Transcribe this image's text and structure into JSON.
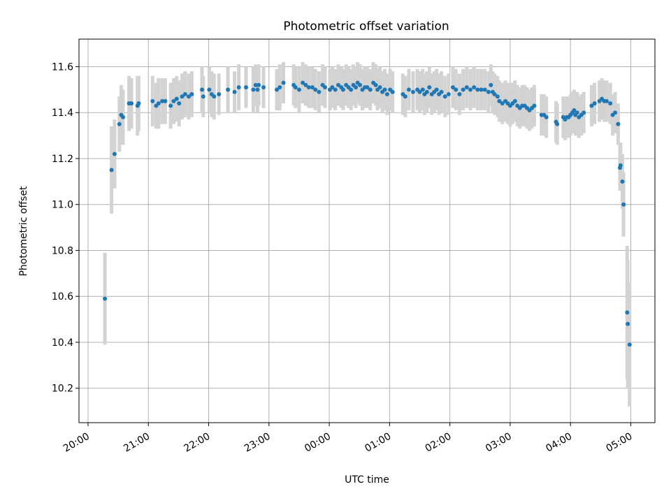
{
  "chart_data": {
    "type": "scatter",
    "title": "Photometric offset variation",
    "xlabel": "UTC time",
    "ylabel": "Photometric offset",
    "xlim_hours": [
      -4.15,
      5.4
    ],
    "ylim": [
      10.05,
      11.72
    ],
    "grid": true,
    "colors": {
      "point": "#1f77b4",
      "errorbar": "#d3d3d3",
      "grid": "#b0b0b0"
    },
    "x_ticks": [
      {
        "h": -4,
        "label": "20:00"
      },
      {
        "h": -3,
        "label": "21:00"
      },
      {
        "h": -2,
        "label": "22:00"
      },
      {
        "h": -1,
        "label": "23:00"
      },
      {
        "h": 0,
        "label": "00:00"
      },
      {
        "h": 1,
        "label": "01:00"
      },
      {
        "h": 2,
        "label": "02:00"
      },
      {
        "h": 3,
        "label": "03:00"
      },
      {
        "h": 4,
        "label": "04:00"
      },
      {
        "h": 5,
        "label": "05:00"
      }
    ],
    "y_ticks": [
      {
        "v": 10.2,
        "label": "10.2"
      },
      {
        "v": 10.4,
        "label": "10.4"
      },
      {
        "v": 10.6,
        "label": "10.6"
      },
      {
        "v": 10.8,
        "label": "10.8"
      },
      {
        "v": 11.0,
        "label": "11.0"
      },
      {
        "v": 11.2,
        "label": "11.2"
      },
      {
        "v": 11.4,
        "label": "11.4"
      },
      {
        "v": 11.6,
        "label": "11.6"
      }
    ],
    "points": [
      [
        -3.72,
        10.59,
        0.2
      ],
      [
        -3.61,
        11.15,
        0.19
      ],
      [
        -3.56,
        11.22,
        0.15
      ],
      [
        -3.48,
        11.35,
        0.12
      ],
      [
        -3.45,
        11.39,
        0.13
      ],
      [
        -3.42,
        11.38,
        0.12
      ],
      [
        -3.32,
        11.44,
        0.12
      ],
      [
        -3.28,
        11.44,
        0.11
      ],
      [
        -3.18,
        11.43,
        0.13
      ],
      [
        -3.16,
        11.44,
        0.12
      ],
      [
        -2.93,
        11.45,
        0.11
      ],
      [
        -2.87,
        11.43,
        0.1
      ],
      [
        -2.83,
        11.44,
        0.11
      ],
      [
        -2.77,
        11.45,
        0.1
      ],
      [
        -2.72,
        11.45,
        0.1
      ],
      [
        -2.63,
        11.43,
        0.1
      ],
      [
        -2.58,
        11.45,
        0.1
      ],
      [
        -2.53,
        11.46,
        0.1
      ],
      [
        -2.49,
        11.44,
        0.1
      ],
      [
        -2.44,
        11.47,
        0.1
      ],
      [
        -2.39,
        11.48,
        0.1
      ],
      [
        -2.33,
        11.47,
        0.1
      ],
      [
        -2.28,
        11.48,
        0.1
      ],
      [
        -2.11,
        11.5,
        0.1
      ],
      [
        -2.09,
        11.47,
        0.09
      ],
      [
        -1.99,
        11.5,
        0.1
      ],
      [
        -1.95,
        11.48,
        0.1
      ],
      [
        -1.91,
        11.47,
        0.1
      ],
      [
        -1.83,
        11.48,
        0.09
      ],
      [
        -1.68,
        11.5,
        0.1
      ],
      [
        -1.57,
        11.49,
        0.09
      ],
      [
        -1.5,
        11.51,
        0.1
      ],
      [
        -1.38,
        11.51,
        0.09
      ],
      [
        -1.26,
        11.5,
        0.1
      ],
      [
        -1.22,
        11.52,
        0.09
      ],
      [
        -1.19,
        11.5,
        0.1
      ],
      [
        -1.17,
        11.52,
        0.09
      ],
      [
        -1.09,
        11.51,
        0.09
      ],
      [
        -0.87,
        11.5,
        0.09
      ],
      [
        -0.82,
        11.51,
        0.1
      ],
      [
        -0.76,
        11.53,
        0.09
      ],
      [
        -0.59,
        11.52,
        0.09
      ],
      [
        -0.56,
        11.51,
        0.09
      ],
      [
        -0.5,
        11.5,
        0.1
      ],
      [
        -0.44,
        11.53,
        0.09
      ],
      [
        -0.39,
        11.52,
        0.09
      ],
      [
        -0.34,
        11.51,
        0.09
      ],
      [
        -0.28,
        11.51,
        0.09
      ],
      [
        -0.23,
        11.5,
        0.09
      ],
      [
        -0.17,
        11.49,
        0.09
      ],
      [
        -0.11,
        11.52,
        0.09
      ],
      [
        -0.07,
        11.51,
        0.09
      ],
      [
        0.01,
        11.5,
        0.09
      ],
      [
        0.05,
        11.51,
        0.09
      ],
      [
        0.1,
        11.5,
        0.09
      ],
      [
        0.15,
        11.52,
        0.09
      ],
      [
        0.2,
        11.51,
        0.09
      ],
      [
        0.23,
        11.5,
        0.09
      ],
      [
        0.28,
        11.52,
        0.09
      ],
      [
        0.32,
        11.51,
        0.09
      ],
      [
        0.36,
        11.5,
        0.09
      ],
      [
        0.4,
        11.52,
        0.09
      ],
      [
        0.44,
        11.51,
        0.09
      ],
      [
        0.47,
        11.53,
        0.09
      ],
      [
        0.51,
        11.52,
        0.09
      ],
      [
        0.55,
        11.5,
        0.09
      ],
      [
        0.59,
        11.51,
        0.09
      ],
      [
        0.63,
        11.51,
        0.09
      ],
      [
        0.68,
        11.5,
        0.09
      ],
      [
        0.73,
        11.53,
        0.09
      ],
      [
        0.77,
        11.52,
        0.09
      ],
      [
        0.8,
        11.5,
        0.09
      ],
      [
        0.84,
        11.51,
        0.09
      ],
      [
        0.88,
        11.49,
        0.09
      ],
      [
        0.92,
        11.5,
        0.09
      ],
      [
        0.96,
        11.48,
        0.09
      ],
      [
        1.01,
        11.5,
        0.09
      ],
      [
        1.05,
        11.49,
        0.09
      ],
      [
        1.22,
        11.48,
        0.09
      ],
      [
        1.26,
        11.47,
        0.09
      ],
      [
        1.32,
        11.5,
        0.09
      ],
      [
        1.39,
        11.49,
        0.09
      ],
      [
        1.46,
        11.5,
        0.09
      ],
      [
        1.5,
        11.49,
        0.09
      ],
      [
        1.55,
        11.5,
        0.09
      ],
      [
        1.58,
        11.48,
        0.09
      ],
      [
        1.62,
        11.49,
        0.09
      ],
      [
        1.66,
        11.51,
        0.09
      ],
      [
        1.7,
        11.48,
        0.09
      ],
      [
        1.74,
        11.49,
        0.09
      ],
      [
        1.78,
        11.5,
        0.09
      ],
      [
        1.82,
        11.48,
        0.09
      ],
      [
        1.86,
        11.49,
        0.09
      ],
      [
        1.92,
        11.47,
        0.09
      ],
      [
        1.98,
        11.48,
        0.09
      ],
      [
        2.05,
        11.51,
        0.09
      ],
      [
        2.1,
        11.5,
        0.09
      ],
      [
        2.16,
        11.48,
        0.09
      ],
      [
        2.22,
        11.5,
        0.09
      ],
      [
        2.28,
        11.51,
        0.09
      ],
      [
        2.34,
        11.5,
        0.09
      ],
      [
        2.4,
        11.51,
        0.09
      ],
      [
        2.46,
        11.5,
        0.09
      ],
      [
        2.52,
        11.5,
        0.09
      ],
      [
        2.58,
        11.5,
        0.09
      ],
      [
        2.64,
        11.49,
        0.09
      ],
      [
        2.68,
        11.52,
        0.09
      ],
      [
        2.71,
        11.49,
        0.09
      ],
      [
        2.74,
        11.48,
        0.09
      ],
      [
        2.79,
        11.47,
        0.09
      ],
      [
        2.82,
        11.45,
        0.09
      ],
      [
        2.87,
        11.44,
        0.09
      ],
      [
        2.92,
        11.45,
        0.09
      ],
      [
        2.96,
        11.44,
        0.09
      ],
      [
        3.0,
        11.43,
        0.09
      ],
      [
        3.04,
        11.44,
        0.09
      ],
      [
        3.08,
        11.45,
        0.09
      ],
      [
        3.12,
        11.43,
        0.09
      ],
      [
        3.16,
        11.42,
        0.09
      ],
      [
        3.2,
        11.43,
        0.09
      ],
      [
        3.24,
        11.43,
        0.09
      ],
      [
        3.28,
        11.42,
        0.09
      ],
      [
        3.32,
        11.41,
        0.09
      ],
      [
        3.36,
        11.42,
        0.09
      ],
      [
        3.4,
        11.43,
        0.09
      ],
      [
        3.52,
        11.39,
        0.09
      ],
      [
        3.56,
        11.39,
        0.09
      ],
      [
        3.6,
        11.38,
        0.09
      ],
      [
        3.76,
        11.36,
        0.09
      ],
      [
        3.78,
        11.35,
        0.09
      ],
      [
        3.88,
        11.38,
        0.09
      ],
      [
        3.91,
        11.37,
        0.09
      ],
      [
        3.94,
        11.38,
        0.09
      ],
      [
        3.97,
        11.38,
        0.09
      ],
      [
        4.0,
        11.39,
        0.09
      ],
      [
        4.03,
        11.4,
        0.09
      ],
      [
        4.06,
        11.41,
        0.09
      ],
      [
        4.08,
        11.39,
        0.09
      ],
      [
        4.11,
        11.4,
        0.09
      ],
      [
        4.14,
        11.38,
        0.09
      ],
      [
        4.18,
        11.39,
        0.09
      ],
      [
        4.22,
        11.4,
        0.09
      ],
      [
        4.35,
        11.43,
        0.09
      ],
      [
        4.4,
        11.44,
        0.09
      ],
      [
        4.48,
        11.45,
        0.09
      ],
      [
        4.52,
        11.46,
        0.09
      ],
      [
        4.56,
        11.45,
        0.09
      ],
      [
        4.6,
        11.45,
        0.09
      ],
      [
        4.66,
        11.44,
        0.09
      ],
      [
        4.7,
        11.39,
        0.09
      ],
      [
        4.74,
        11.4,
        0.09
      ],
      [
        4.79,
        11.35,
        0.09
      ],
      [
        4.82,
        11.16,
        0.1
      ],
      [
        4.83,
        11.17,
        0.1
      ],
      [
        4.86,
        11.1,
        0.12
      ],
      [
        4.88,
        11.0,
        0.14
      ],
      [
        4.94,
        10.53,
        0.29
      ],
      [
        4.95,
        10.48,
        0.28
      ],
      [
        4.98,
        10.39,
        0.27
      ]
    ]
  }
}
